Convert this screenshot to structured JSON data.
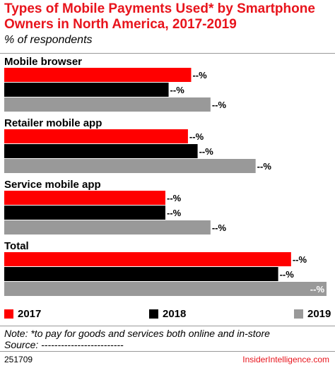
{
  "colors": {
    "s2017": "#ff0000",
    "s2018": "#000000",
    "s2019": "#999999",
    "title": "#e8141c"
  },
  "header": {
    "title": "Types of Mobile Payments Used* by Smartphone Owners in North America, 2017-2019",
    "subtitle": "% of respondents"
  },
  "chart_data": {
    "type": "bar",
    "orientation": "horizontal",
    "title": "Types of Mobile Payments Used* by Smartphone Owners in North America, 2017-2019",
    "subtitle": "% of respondents",
    "categories": [
      "Mobile browser",
      "Retailer mobile app",
      "Service mobile app",
      "Total"
    ],
    "series": [
      {
        "name": "2017",
        "values": [
          58,
          57,
          50,
          89
        ],
        "labels": [
          "--%",
          "--%",
          "--%",
          "--%"
        ]
      },
      {
        "name": "2018",
        "values": [
          51,
          60,
          50,
          85
        ],
        "labels": [
          "--%",
          "--%",
          "--%",
          "--%"
        ]
      },
      {
        "name": "2019",
        "values": [
          64,
          78,
          64,
          100
        ],
        "labels": [
          "--%",
          "--%",
          "--%",
          "--%"
        ]
      }
    ],
    "xlim": [
      0,
      100
    ],
    "value_scale": "relative, values not disclosed",
    "grid": false,
    "legend_position": "bottom"
  },
  "legend": {
    "items": [
      "2017",
      "2018",
      "2019"
    ]
  },
  "footer": {
    "note": "Note: *to pay for goods and services both online and in-store",
    "source": "Source: -------------------------",
    "chart_id": "251709",
    "brand": "InsiderIntelligence.com"
  }
}
